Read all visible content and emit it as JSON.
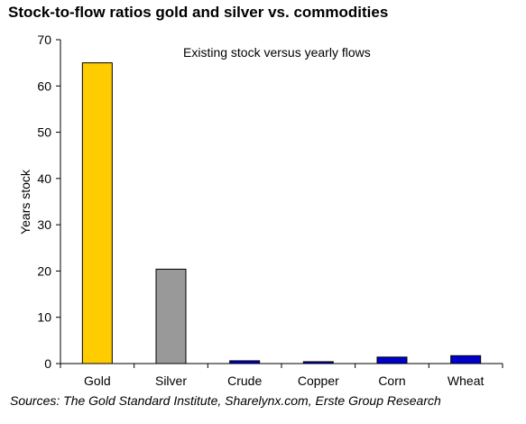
{
  "chart_data": {
    "type": "bar",
    "title": "Stock-to-flow ratios gold and silver vs. commodities",
    "annotation": "Existing stock versus yearly flows",
    "ylabel": "Years stock",
    "xlabel": "",
    "ylim": [
      0,
      70
    ],
    "yticks": [
      0,
      10,
      20,
      30,
      40,
      50,
      60,
      70
    ],
    "categories": [
      "Gold",
      "Silver",
      "Crude",
      "Copper",
      "Corn",
      "Wheat"
    ],
    "values": [
      65,
      20.4,
      0.6,
      0.4,
      1.4,
      1.7
    ],
    "bar_colors": [
      "#FFCC00",
      "#999999",
      "#0000CC",
      "#0000CC",
      "#0000CC",
      "#0000CC"
    ],
    "grid": false,
    "legend": "none",
    "source": "Sources: The Gold Standard Institute, Sharelynx.com, Erste Group Research"
  }
}
